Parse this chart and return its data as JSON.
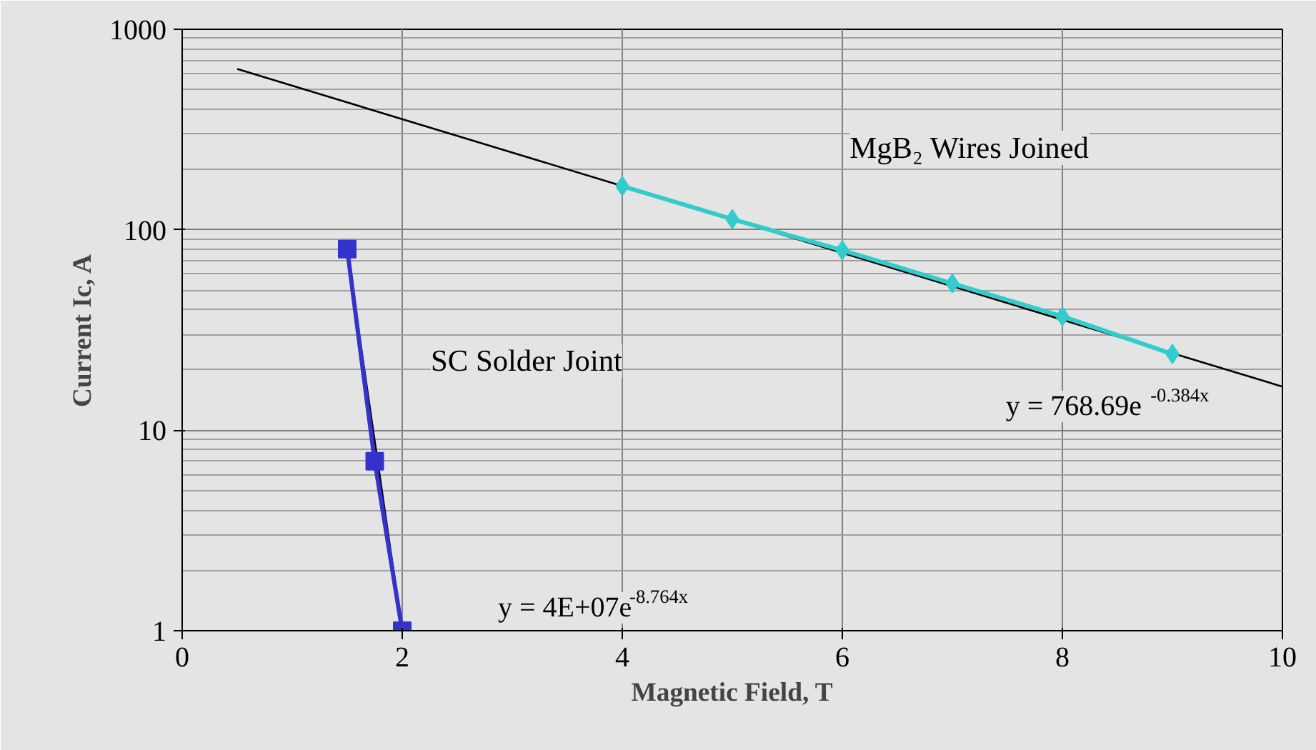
{
  "chart_data": {
    "type": "line",
    "xlabel": "Magnetic Field, T",
    "ylabel": "Current Ic, A",
    "log": "y",
    "grid": true,
    "xlim": [
      0,
      10
    ],
    "ylim": [
      1,
      1000
    ],
    "xticks": [
      0,
      2,
      4,
      6,
      8,
      10
    ],
    "yticks": [
      1,
      10,
      100,
      1000
    ],
    "series": [
      {
        "color": "#000000",
        "x": [
          0.5,
          10
        ],
        "values": [
          634,
          16.5
        ]
      },
      {
        "color": "#000000",
        "x": [
          1.5,
          2
        ],
        "values": [
          78,
          1
        ]
      },
      {
        "color": "#33cccc",
        "marker": "diamond",
        "x": [
          4,
          5,
          6,
          7,
          8,
          9
        ],
        "values": [
          165,
          113,
          79,
          54,
          37,
          24
        ]
      },
      {
        "color": "#3333cc",
        "marker": "square",
        "x": [
          1.5,
          1.75,
          2
        ],
        "values": [
          80,
          7,
          1
        ]
      }
    ],
    "annotations": [
      "MgB₂ Wires Joined",
      "SC Solder Joint",
      "y = 768.69e$^{-0.384x}$",
      "y = 4E+07e$^{-8.764x}$"
    ]
  }
}
